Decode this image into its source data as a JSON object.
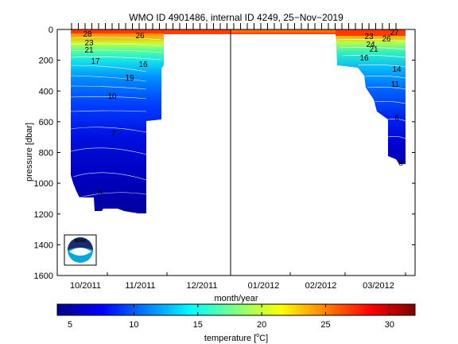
{
  "chart_data": {
    "type": "heatmap",
    "title": "WMO ID 4901486, internal ID 4249, 25−Nov−2019",
    "xlabel": "month/year",
    "ylabel": "pressure [dbar]",
    "x_tick_labels": [
      "10/2011",
      "11/2011",
      "12/2011",
      "01/2012",
      "02/2012",
      "03/2012"
    ],
    "y_ticks": [
      0,
      200,
      400,
      600,
      800,
      1000,
      1200,
      1400,
      1600
    ],
    "ylim": [
      1600,
      0
    ],
    "grid": false,
    "colorbar": {
      "label": "temperature [°C]",
      "label_main": "temperature [",
      "label_unit_sup": "o",
      "label_unit_tail": "C]",
      "ticks": [
        5,
        10,
        15,
        20,
        25,
        30
      ],
      "range": [
        4,
        32
      ]
    },
    "contour_labels": {
      "left_section": [
        "28",
        "26",
        "23",
        "21",
        "17",
        "16",
        "19",
        "10",
        "7",
        "5"
      ],
      "right_section": [
        "27",
        "23",
        "26",
        "24",
        "21",
        "16",
        "14",
        "11",
        "6",
        "8"
      ]
    },
    "separator_month": "01/2012",
    "logo_text": "NOAA",
    "axis_color": "#000000",
    "line_color": "#000000"
  }
}
